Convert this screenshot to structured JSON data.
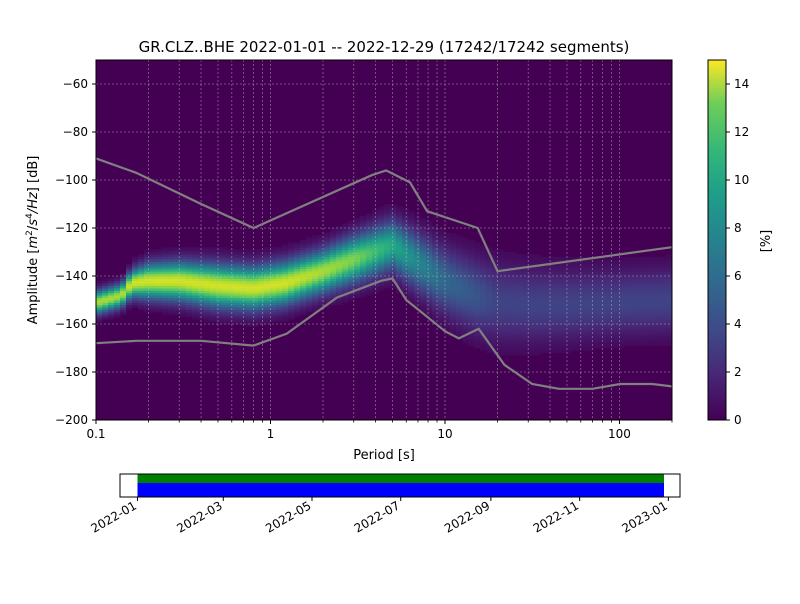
{
  "chart_data": [
    {
      "type": "heatmap",
      "title": "GR.CLZ..BHE   2022-01-01 -- 2022-12-29  (17242/17242 segments)",
      "xlabel": "Period [s]",
      "ylabel_parts": {
        "prefix": "Amplitude [",
        "m": "m",
        "m_exp": "2",
        "sep": "/",
        "s": "s",
        "s_exp": "4",
        "hz": "/Hz",
        "suffix": "] [dB]"
      },
      "x_scale": "log",
      "xlim": [
        0.1,
        200
      ],
      "ylim": [
        -200,
        -50
      ],
      "x_ticks": [
        {
          "value": 0.1,
          "label": "0.1"
        },
        {
          "value": 1,
          "label": "1"
        },
        {
          "value": 10,
          "label": "10"
        },
        {
          "value": 100,
          "label": "100"
        }
      ],
      "y_ticks": [
        {
          "value": -60,
          "label": "−60"
        },
        {
          "value": -80,
          "label": "−80"
        },
        {
          "value": -100,
          "label": "−100"
        },
        {
          "value": -120,
          "label": "−120"
        },
        {
          "value": -140,
          "label": "−140"
        },
        {
          "value": -160,
          "label": "−160"
        },
        {
          "value": -180,
          "label": "−180"
        },
        {
          "value": -200,
          "label": "−200"
        }
      ],
      "grid": true,
      "colormap": "viridis",
      "colorbar": {
        "label": "[%]",
        "range": [
          0,
          15
        ],
        "ticks": [
          {
            "value": 0,
            "label": "0"
          },
          {
            "value": 2,
            "label": "2"
          },
          {
            "value": 4,
            "label": "4"
          },
          {
            "value": 6,
            "label": "6"
          },
          {
            "value": 8,
            "label": "8"
          },
          {
            "value": 10,
            "label": "10"
          },
          {
            "value": 12,
            "label": "12"
          },
          {
            "value": 14,
            "label": "14"
          }
        ]
      },
      "background_color": "#440154",
      "density_bands": [
        {
          "points": [
            [
              0.1,
              -151
            ],
            [
              0.14,
              -148
            ],
            [
              0.16,
              -143
            ],
            [
              0.2,
              -142
            ],
            [
              0.3,
              -142
            ],
            [
              0.5,
              -144
            ],
            [
              0.8,
              -145
            ],
            [
              1.2,
              -143
            ],
            [
              2,
              -138
            ],
            [
              3,
              -133
            ],
            [
              5,
              -127
            ],
            [
              7,
              -134
            ],
            [
              10,
              -142
            ],
            [
              15,
              -148
            ],
            [
              20,
              -151
            ],
            [
              30,
              -152
            ],
            [
              50,
              -152
            ],
            [
              100,
              -151
            ],
            [
              200,
              -150
            ]
          ],
          "width": [
            6,
            6,
            7,
            9,
            10,
            11,
            11,
            11,
            11,
            12,
            13,
            15,
            17,
            19,
            20,
            19,
            18,
            17,
            17
          ],
          "peak": [
            13,
            13,
            14,
            14,
            14,
            14,
            14,
            14,
            13,
            12,
            9,
            7,
            5,
            4,
            3,
            3,
            3,
            3,
            3
          ]
        }
      ],
      "noise_models": {
        "color": "#808080",
        "series": [
          {
            "x": [
              0.1,
              0.17,
              0.22,
              0.4,
              0.8,
              1.24,
              2.4,
              4.3,
              5,
              6,
              10,
              12,
              15.6,
              21.9,
              31.6,
              45,
              70,
              101,
              154,
              200
            ],
            "y": [
              -168,
              -167,
              -167,
              -167,
              -169,
              -164,
              -149,
              -142,
              -141,
              -150,
              -163,
              -166,
              -162,
              -177,
              -185,
              -187,
              -187,
              -185,
              -185,
              -186
            ]
          },
          {
            "x": [
              0.1,
              0.17,
              0.4,
              0.8,
              3.8,
              4.6,
              6.3,
              7.9,
              15.4,
              20,
              200
            ],
            "y": [
              -91,
              -97,
              -110,
              -120,
              -98,
              -96,
              -101,
              -113,
              -120,
              -138,
              -128
            ]
          }
        ]
      }
    },
    {
      "type": "timeline",
      "range": [
        "2022-01-01",
        "2022-12-29"
      ],
      "xlim": [
        "2021-12-20",
        "2023-01-09"
      ],
      "x_ticks": [
        "2022-01",
        "2022-03",
        "2022-05",
        "2022-07",
        "2022-09",
        "2022-11",
        "2023-01"
      ],
      "bars": [
        {
          "color": "#008000"
        },
        {
          "color": "#0000ff"
        }
      ]
    }
  ]
}
